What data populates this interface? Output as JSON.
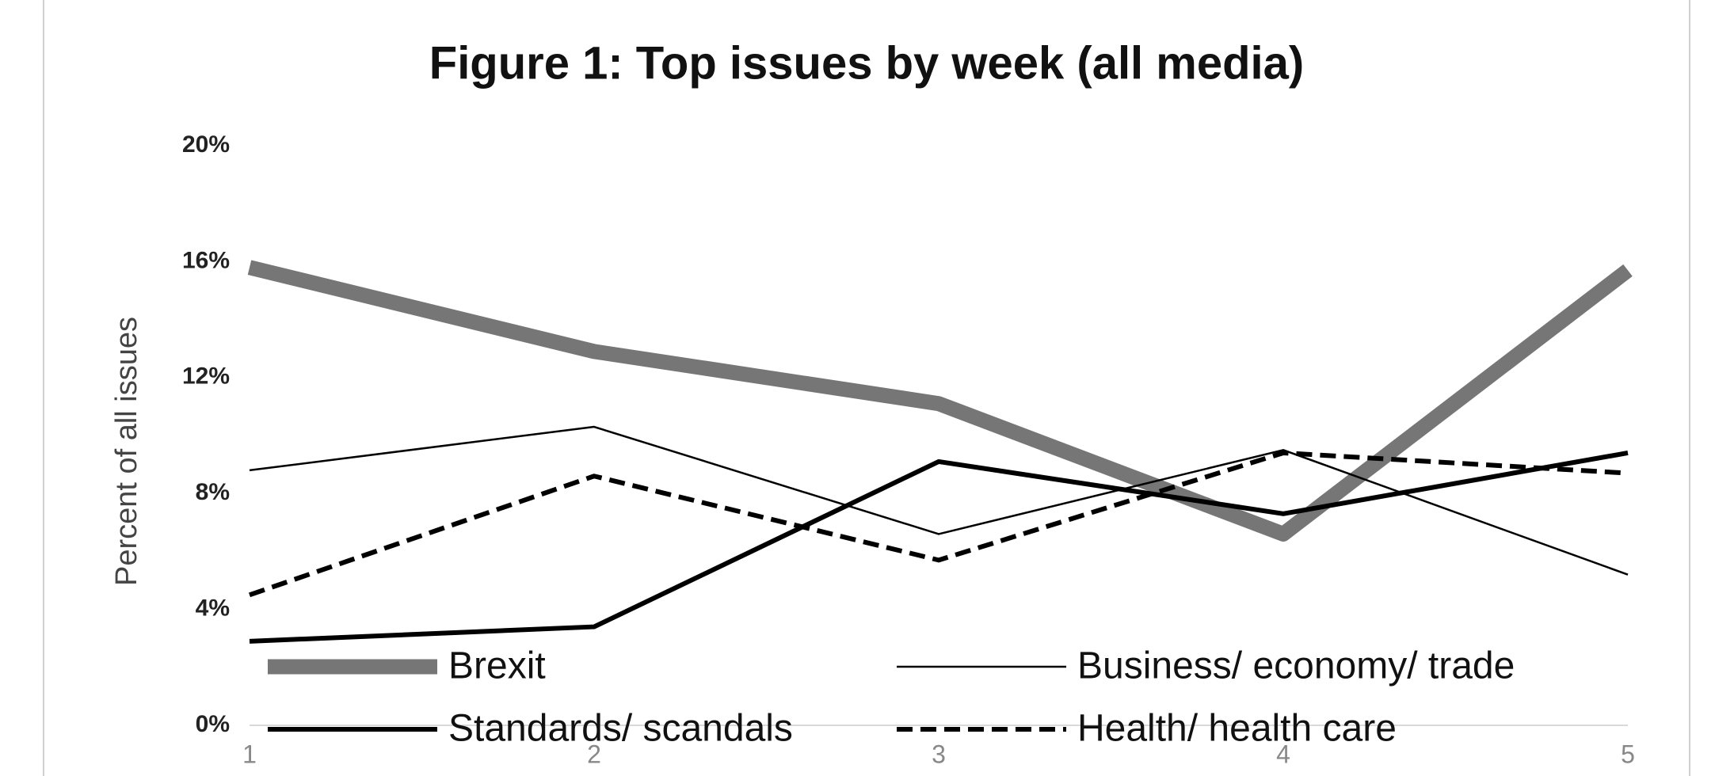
{
  "chart_data": {
    "type": "line",
    "title": "Figure 1: Top issues by week (all media)",
    "y_label": "Percent of all issues",
    "x": [
      1,
      2,
      3,
      4,
      5
    ],
    "xlim": [
      1,
      5
    ],
    "xticks": [
      1,
      2,
      3,
      4,
      5
    ],
    "ylim": [
      0,
      20
    ],
    "yticks": [
      {
        "value": 0,
        "label": "0%"
      },
      {
        "value": 4,
        "label": "4%"
      },
      {
        "value": 8,
        "label": "8%"
      },
      {
        "value": 12,
        "label": "12%"
      },
      {
        "value": 16,
        "label": "16%"
      },
      {
        "value": 20,
        "label": "20%"
      }
    ],
    "grid": false,
    "legend": "bottom",
    "series": [
      {
        "name": "Brexit",
        "color": "#767676",
        "values": [
          15.8,
          12.9,
          11.1,
          6.6,
          15.7
        ]
      },
      {
        "name": "Business/ economy/ trade",
        "color": "#000000",
        "values": [
          8.8,
          10.3,
          6.6,
          9.5,
          5.2
        ]
      },
      {
        "name": "Standards/ scandals",
        "color": "#000000",
        "values": [
          2.9,
          3.4,
          9.1,
          7.3,
          9.4
        ]
      },
      {
        "name": "Health/ health care",
        "color": "#000000",
        "dashed": true,
        "values": [
          4.5,
          8.6,
          5.7,
          9.4,
          8.7
        ]
      }
    ]
  }
}
